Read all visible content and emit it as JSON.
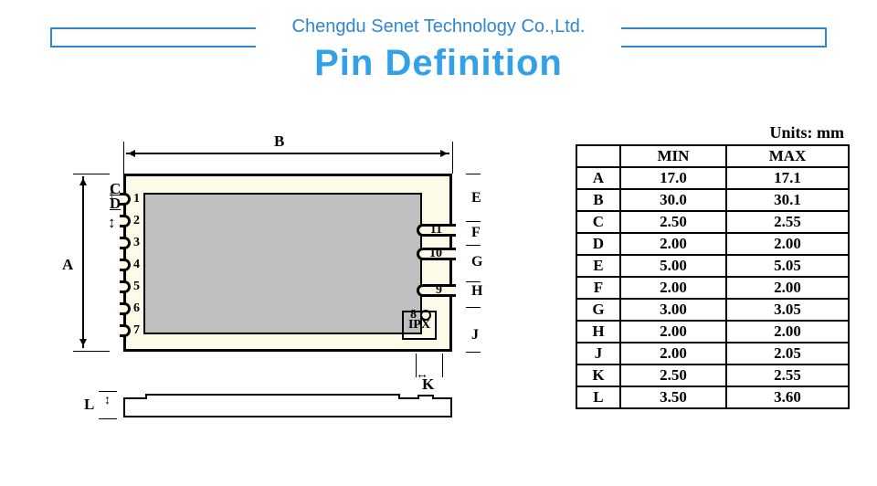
{
  "header": {
    "company": "Chengdu Senet Technology Co.,Ltd.",
    "title": "Pin Definition",
    "brand_color": "#33a1e8",
    "bracket_color": "#2e86d2"
  },
  "units_label": "Units: mm",
  "table": {
    "headers": [
      "",
      "MIN",
      "MAX"
    ],
    "rows": [
      {
        "label": "A",
        "min": "17.0",
        "max": "17.1"
      },
      {
        "label": "B",
        "min": "30.0",
        "max": "30.1"
      },
      {
        "label": "C",
        "min": "2.50",
        "max": "2.55"
      },
      {
        "label": "D",
        "min": "2.00",
        "max": "2.00"
      },
      {
        "label": "E",
        "min": "5.00",
        "max": "5.05"
      },
      {
        "label": "F",
        "min": "2.00",
        "max": "2.00"
      },
      {
        "label": "G",
        "min": "3.00",
        "max": "3.05"
      },
      {
        "label": "H",
        "min": "2.00",
        "max": "2.00"
      },
      {
        "label": "J",
        "min": "2.00",
        "max": "2.05"
      },
      {
        "label": "K",
        "min": "2.50",
        "max": "2.55"
      },
      {
        "label": "L",
        "min": "3.50",
        "max": "3.60"
      }
    ]
  },
  "diagram": {
    "module_bg": "#fdfae8",
    "shield_bg": "#c0bfc0",
    "ipx_label": "IPX",
    "left_pins": [
      1,
      2,
      3,
      4,
      5,
      6,
      7
    ],
    "right_pins": [
      11,
      10,
      9,
      8
    ],
    "pin8_is_circle": true,
    "dim_labels": {
      "A": "A",
      "B": "B",
      "C": "C",
      "D": "D",
      "E": "E",
      "F": "F",
      "G": "G",
      "H": "H",
      "J": "J",
      "K": "K",
      "L": "L"
    }
  }
}
